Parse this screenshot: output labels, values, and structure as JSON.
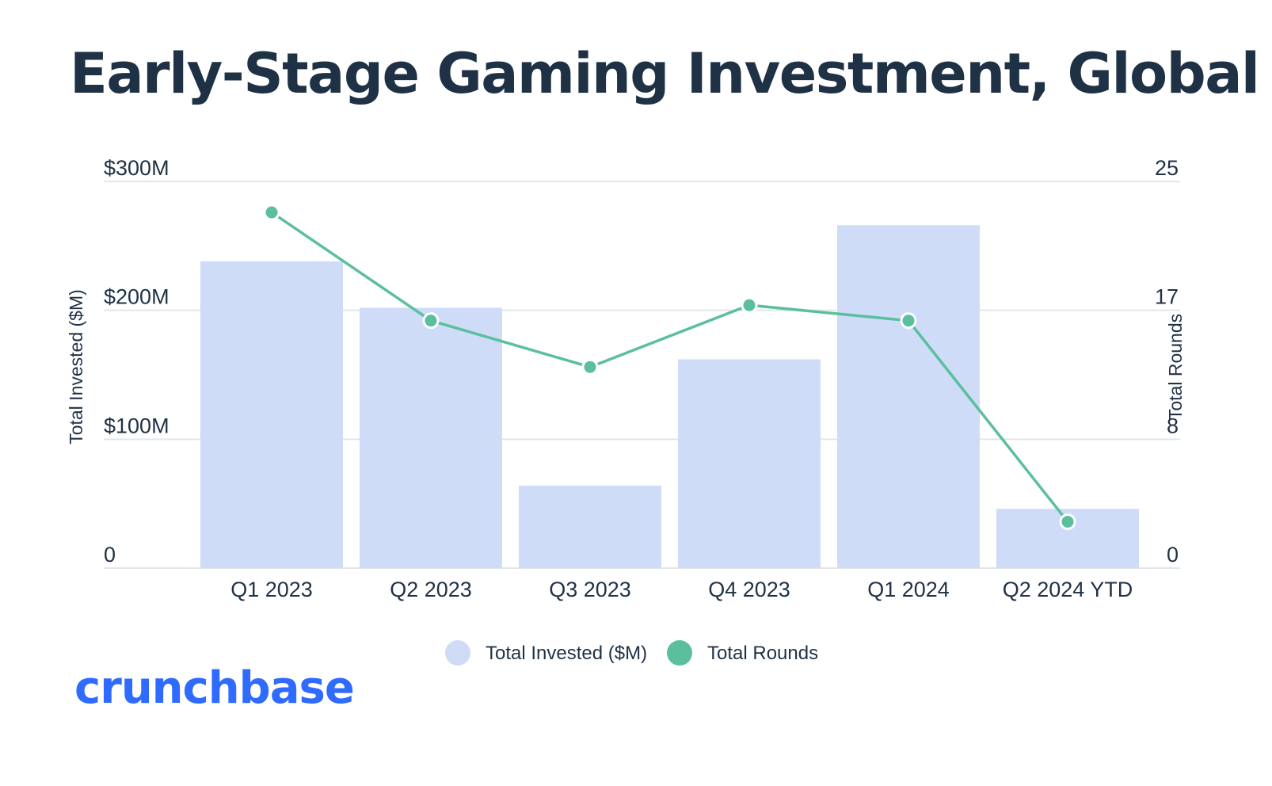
{
  "title": "Early-Stage Gaming Investment, Global",
  "logo": "crunchbase",
  "colors": {
    "bar": "#cedcf8",
    "line": "#5bbf9e",
    "text": "#1f3145",
    "grid": "#e3e6ea",
    "logo": "#2f6bff"
  },
  "chart_data": {
    "type": "bar",
    "categories": [
      "Q1 2023",
      "Q2 2023",
      "Q3 2023",
      "Q4 2023",
      "Q1 2024",
      "Q2 2024 YTD"
    ],
    "series": [
      {
        "name": "Total Invested ($M)",
        "type": "bar",
        "axis": "left",
        "values": [
          238,
          202,
          64,
          162,
          266,
          46
        ]
      },
      {
        "name": "Total Rounds",
        "type": "line",
        "axis": "right",
        "values": [
          23,
          16,
          13,
          17,
          16,
          3
        ]
      }
    ],
    "y_left": {
      "label": "Total Invested ($M)",
      "ticks": [
        "0",
        "$100M",
        "$200M",
        "$300M"
      ],
      "range": [
        0,
        300
      ]
    },
    "y_right": {
      "label": "Total Rounds",
      "ticks": [
        "0",
        "8",
        "17",
        "25"
      ],
      "range": [
        0,
        25
      ]
    },
    "grid": true,
    "legend": {
      "position": "bottom",
      "items": [
        "Total Invested ($M)",
        "Total Rounds"
      ]
    }
  }
}
